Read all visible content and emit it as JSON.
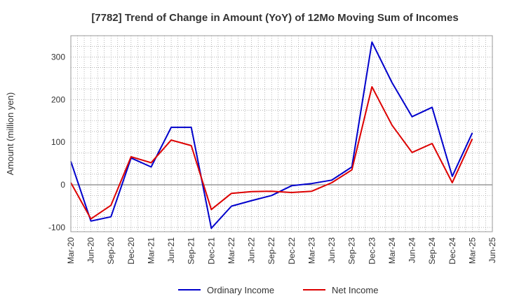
{
  "chart_data": {
    "type": "line",
    "title": "[7782]  Trend of Change in Amount (YoY) of 12Mo Moving Sum of Incomes",
    "xlabel": "",
    "ylabel": "Amount (million yen)",
    "ylim": [
      -110,
      350
    ],
    "yticks": [
      -100,
      0,
      100,
      200,
      300
    ],
    "x": [
      "Mar-20",
      "Jun-20",
      "Sep-20",
      "Dec-20",
      "Mar-21",
      "Jun-21",
      "Sep-21",
      "Dec-21",
      "Mar-22",
      "Jun-22",
      "Sep-22",
      "Dec-22",
      "Mar-23",
      "Jun-23",
      "Sep-23",
      "Dec-23",
      "Mar-24",
      "Jun-24",
      "Sep-24",
      "Dec-24",
      "Mar-25",
      "Jun-25"
    ],
    "grid": true,
    "legend_position": "bottom",
    "series": [
      {
        "name": "Ordinary Income",
        "color": "#0000cc",
        "values": [
          55,
          -85,
          -75,
          63,
          42,
          135,
          135,
          -102,
          -50,
          -37,
          -25,
          -2,
          3,
          11,
          42,
          335,
          240,
          160,
          182,
          20,
          122,
          null
        ]
      },
      {
        "name": "Net Income",
        "color": "#dd0000",
        "values": [
          5,
          -80,
          -48,
          66,
          52,
          105,
          92,
          -58,
          -20,
          -16,
          -15,
          -18,
          -15,
          5,
          35,
          230,
          140,
          76,
          97,
          5,
          108,
          null
        ]
      }
    ]
  }
}
